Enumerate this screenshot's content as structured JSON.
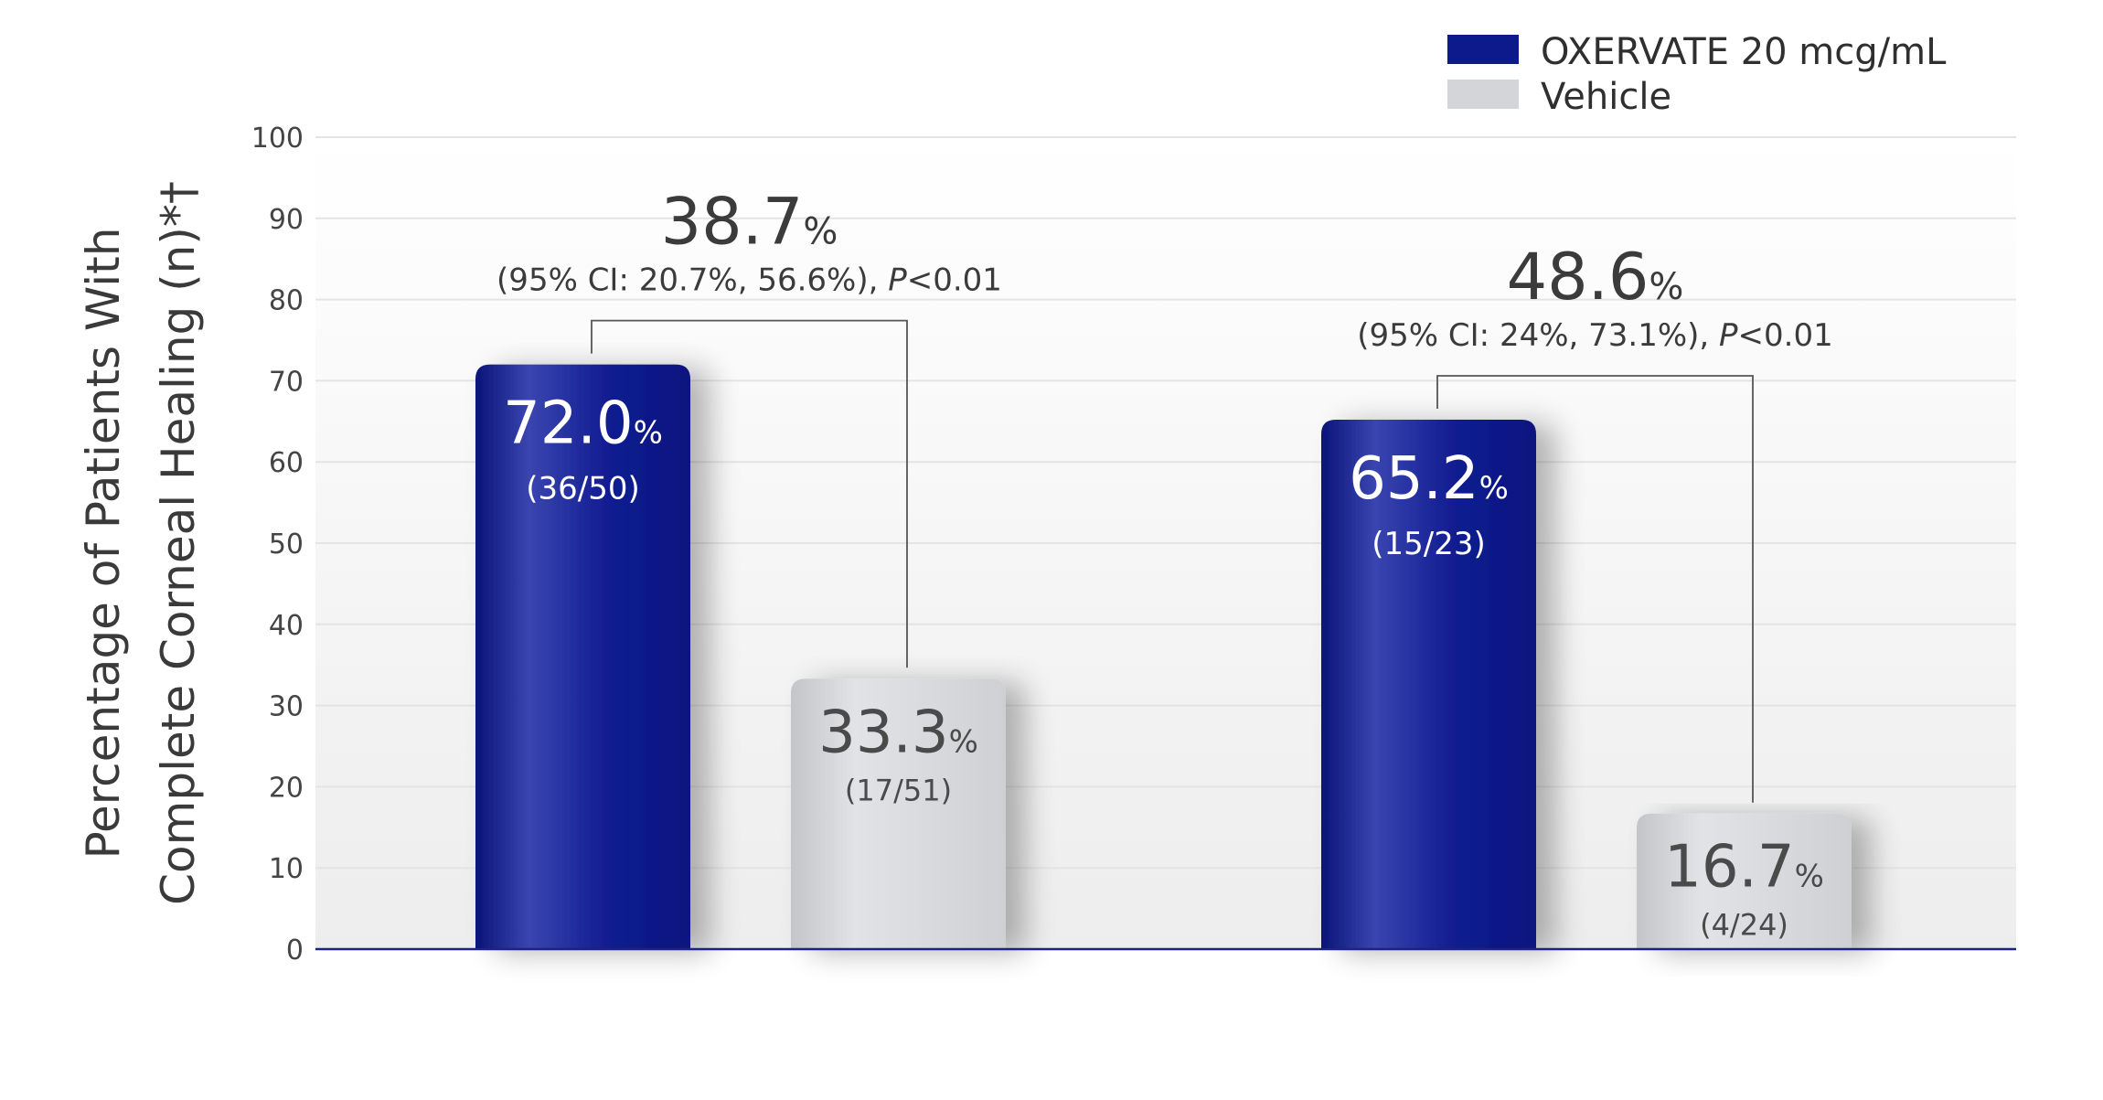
{
  "chart_data": {
    "type": "bar",
    "title": "",
    "ylabel_line1": "Percentage of Patients With",
    "ylabel_line2": "Complete Corneal Healing (n)*†",
    "ylim": [
      0,
      100
    ],
    "yticks": [
      "0",
      "10",
      "20",
      "30",
      "40",
      "50",
      "60",
      "70",
      "80",
      "90",
      "100"
    ],
    "grid": true,
    "legend_position": "top-right",
    "colors": {
      "oxervate": "#0d1a8c",
      "vehicle": "#d4d5d8",
      "axis": "#1a237e",
      "grid": "#e4e4e4",
      "bracket": "#555555"
    },
    "series": [
      {
        "name": "OXERVATE 20 mcg/mL",
        "values": [
          72.0,
          65.2
        ],
        "value_labels": [
          "72.0",
          "65.2"
        ],
        "n_labels": [
          "(36/50)",
          "(15/23)"
        ]
      },
      {
        "name": "Vehicle",
        "values": [
          33.3,
          16.7
        ],
        "value_labels": [
          "33.3",
          "16.7"
        ],
        "n_labels": [
          "(17/51)",
          "(4/24)"
        ]
      }
    ],
    "differences": [
      {
        "value": "38.7",
        "ci_text": "(95% CI: 20.7%, 56.6%), ",
        "p_symbol": "P",
        "p_text": "<0.01"
      },
      {
        "value": "48.6",
        "ci_text": "(95% CI: 24%, 73.1%), ",
        "p_symbol": "P",
        "p_text": "<0.01"
      }
    ],
    "percent_symbol": "%"
  }
}
